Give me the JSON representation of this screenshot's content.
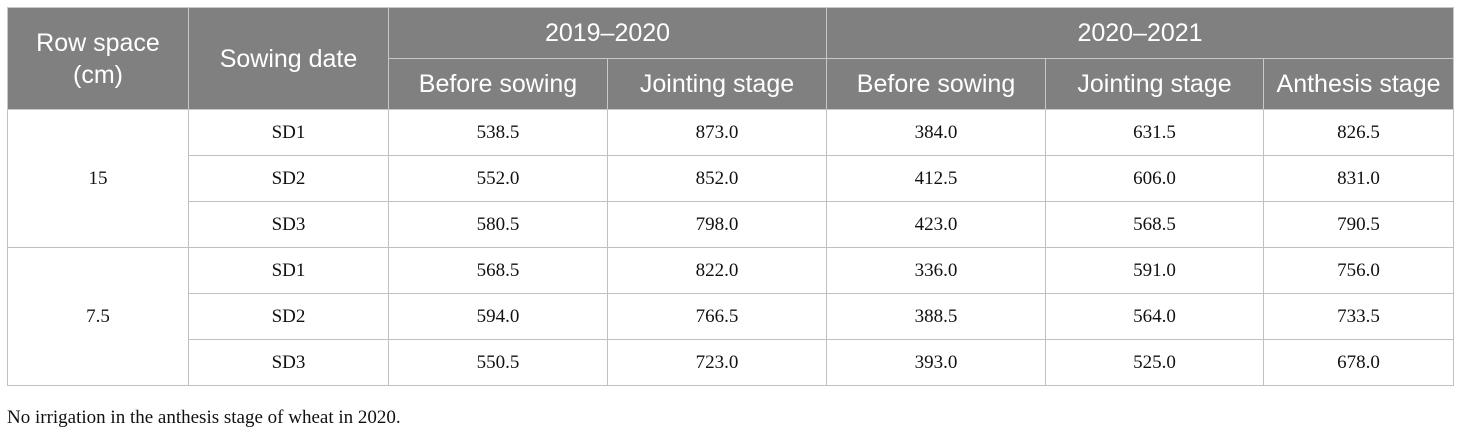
{
  "header": {
    "row_space": "Row space\n(cm)",
    "row_space_line1": "Row space",
    "row_space_line2": "(cm)",
    "sowing_date": "Sowing date",
    "year1": "2019–2020",
    "year2": "2020–2021",
    "y1_cols": [
      "Before sowing",
      "Jointing stage"
    ],
    "y2_cols": [
      "Before sowing",
      "Jointing stage",
      "Anthesis stage"
    ]
  },
  "groups": [
    {
      "row_space": "15",
      "rows": [
        {
          "sd": "SD1",
          "v": [
            "538.5",
            "873.0",
            "384.0",
            "631.5",
            "826.5"
          ]
        },
        {
          "sd": "SD2",
          "v": [
            "552.0",
            "852.0",
            "412.5",
            "606.0",
            "831.0"
          ]
        },
        {
          "sd": "SD3",
          "v": [
            "580.5",
            "798.0",
            "423.0",
            "568.5",
            "790.5"
          ]
        }
      ]
    },
    {
      "row_space": "7.5",
      "rows": [
        {
          "sd": "SD1",
          "v": [
            "568.5",
            "822.0",
            "336.0",
            "591.0",
            "756.0"
          ]
        },
        {
          "sd": "SD2",
          "v": [
            "594.0",
            "766.5",
            "388.5",
            "564.0",
            "733.5"
          ]
        },
        {
          "sd": "SD3",
          "v": [
            "550.5",
            "723.0",
            "393.0",
            "525.0",
            "678.0"
          ]
        }
      ]
    }
  ],
  "footnote": "No irrigation in the anthesis stage of wheat in 2020.",
  "colors": {
    "header_bg": "#808080",
    "header_text": "#ffffff",
    "border": "#c0c0c0"
  }
}
